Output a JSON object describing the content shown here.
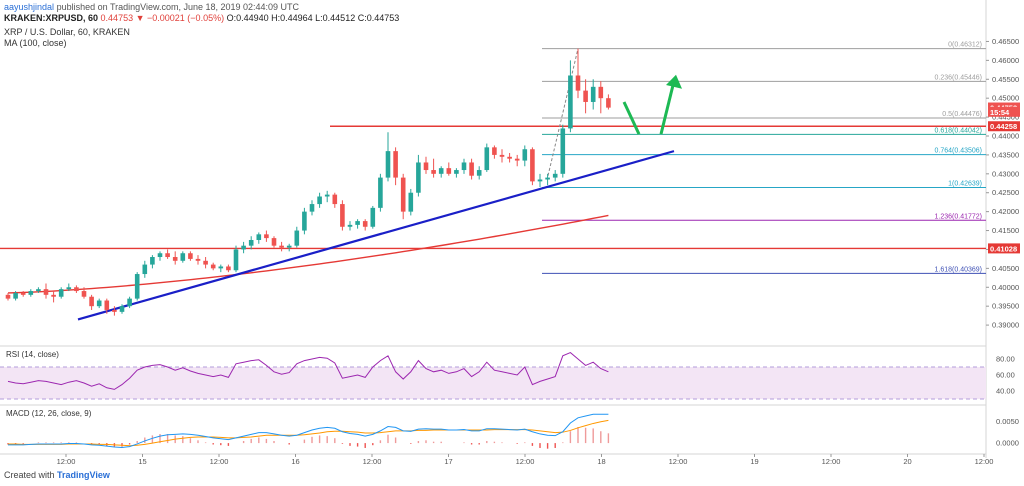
{
  "header": {
    "publisher": "aayushjindal",
    "published_text": "published on TradingView.com, June 18, 2019 02:44:09 UTC",
    "symbol": "KRAKEN:XRPUSD, 60",
    "last": "0.44753",
    "change": "▼ −0.00021 (−0.05%)",
    "ohlc": "O:0.44940 H:0.44964 L:0.44512 C:0.44753",
    "legend_title": "XRP / U.S. Dollar, 60, KRAKEN",
    "legend_ma": "MA (100, close)"
  },
  "footer": {
    "created_with": "Created with",
    "brand": "TradingView"
  },
  "colors": {
    "up": "#26a69a",
    "down": "#ef5350",
    "ma": "#e53935",
    "trend": "#1a1fc7",
    "resistance": "#e53935",
    "arrow": "#1db954",
    "rsi": "#9c27b0",
    "macd": "#2196f3",
    "signal": "#ff9800"
  },
  "chart_data": {
    "type": "candlestick",
    "price_ylim": [
      0.385,
      0.4675
    ],
    "price_ticks": [
      "0.46500",
      "0.46000",
      "0.45500",
      "0.45000",
      "0.44500",
      "0.44000",
      "0.43500",
      "0.43000",
      "0.42500",
      "0.42000",
      "0.41500",
      "0.41000",
      "0.40500",
      "0.40000",
      "0.39500",
      "0.39000"
    ],
    "time_ticks": [
      "12:00",
      "15",
      "12:00",
      "16",
      "12:00",
      "17",
      "12:00",
      "18",
      "12:00",
      "19",
      "12:00",
      "20",
      "12:00"
    ],
    "candles": [
      [
        0.398,
        0.3985,
        0.3965,
        0.397
      ],
      [
        0.397,
        0.399,
        0.3965,
        0.3985
      ],
      [
        0.3985,
        0.399,
        0.3975,
        0.398
      ],
      [
        0.398,
        0.3995,
        0.3975,
        0.399
      ],
      [
        0.399,
        0.4,
        0.3985,
        0.3995
      ],
      [
        0.3995,
        0.401,
        0.397,
        0.398
      ],
      [
        0.398,
        0.399,
        0.396,
        0.3975
      ],
      [
        0.3975,
        0.4,
        0.397,
        0.3995
      ],
      [
        0.3995,
        0.401,
        0.399,
        0.4
      ],
      [
        0.4,
        0.4005,
        0.3985,
        0.399
      ],
      [
        0.399,
        0.4,
        0.397,
        0.3975
      ],
      [
        0.3975,
        0.398,
        0.394,
        0.395
      ],
      [
        0.395,
        0.397,
        0.3945,
        0.3965
      ],
      [
        0.3965,
        0.397,
        0.393,
        0.394
      ],
      [
        0.394,
        0.395,
        0.3925,
        0.3935
      ],
      [
        0.3935,
        0.3955,
        0.393,
        0.395
      ],
      [
        0.395,
        0.3975,
        0.3945,
        0.397
      ],
      [
        0.397,
        0.404,
        0.3965,
        0.4035
      ],
      [
        0.4035,
        0.407,
        0.4025,
        0.406
      ],
      [
        0.406,
        0.4085,
        0.405,
        0.408
      ],
      [
        0.408,
        0.4095,
        0.407,
        0.409
      ],
      [
        0.409,
        0.41,
        0.4075,
        0.408
      ],
      [
        0.408,
        0.4095,
        0.406,
        0.407
      ],
      [
        0.407,
        0.4095,
        0.4065,
        0.409
      ],
      [
        0.409,
        0.4095,
        0.407,
        0.4075
      ],
      [
        0.4075,
        0.4085,
        0.406,
        0.407
      ],
      [
        0.407,
        0.408,
        0.405,
        0.406
      ],
      [
        0.406,
        0.4065,
        0.4045,
        0.405
      ],
      [
        0.405,
        0.406,
        0.404,
        0.4055
      ],
      [
        0.4055,
        0.406,
        0.404,
        0.4045
      ],
      [
        0.4045,
        0.411,
        0.404,
        0.41
      ],
      [
        0.41,
        0.412,
        0.409,
        0.411
      ],
      [
        0.411,
        0.4135,
        0.41,
        0.4125
      ],
      [
        0.4125,
        0.4145,
        0.4115,
        0.414
      ],
      [
        0.414,
        0.415,
        0.412,
        0.413
      ],
      [
        0.413,
        0.4135,
        0.4105,
        0.411
      ],
      [
        0.411,
        0.412,
        0.4095,
        0.4105
      ],
      [
        0.4105,
        0.4115,
        0.4095,
        0.411
      ],
      [
        0.411,
        0.416,
        0.4105,
        0.415
      ],
      [
        0.415,
        0.421,
        0.414,
        0.42
      ],
      [
        0.42,
        0.423,
        0.419,
        0.422
      ],
      [
        0.422,
        0.425,
        0.421,
        0.424
      ],
      [
        0.424,
        0.4255,
        0.4225,
        0.4245
      ],
      [
        0.4245,
        0.425,
        0.421,
        0.422
      ],
      [
        0.422,
        0.423,
        0.415,
        0.416
      ],
      [
        0.416,
        0.4175,
        0.415,
        0.4165
      ],
      [
        0.4165,
        0.418,
        0.4155,
        0.4175
      ],
      [
        0.4175,
        0.418,
        0.415,
        0.416
      ],
      [
        0.416,
        0.4215,
        0.4155,
        0.421
      ],
      [
        0.421,
        0.43,
        0.42,
        0.429
      ],
      [
        0.429,
        0.441,
        0.428,
        0.436
      ],
      [
        0.436,
        0.437,
        0.427,
        0.429
      ],
      [
        0.429,
        0.43,
        0.418,
        0.42
      ],
      [
        0.42,
        0.426,
        0.419,
        0.425
      ],
      [
        0.425,
        0.435,
        0.424,
        0.433
      ],
      [
        0.433,
        0.4345,
        0.43,
        0.431
      ],
      [
        0.431,
        0.434,
        0.429,
        0.43
      ],
      [
        0.43,
        0.432,
        0.429,
        0.4315
      ],
      [
        0.4315,
        0.433,
        0.4295,
        0.43
      ],
      [
        0.43,
        0.4315,
        0.429,
        0.431
      ],
      [
        0.431,
        0.434,
        0.43,
        0.433
      ],
      [
        0.433,
        0.434,
        0.4285,
        0.4295
      ],
      [
        0.4295,
        0.432,
        0.4285,
        0.431
      ],
      [
        0.431,
        0.438,
        0.4305,
        0.437
      ],
      [
        0.437,
        0.4375,
        0.434,
        0.435
      ],
      [
        0.435,
        0.4365,
        0.433,
        0.4345
      ],
      [
        0.4345,
        0.4355,
        0.433,
        0.434
      ],
      [
        0.434,
        0.435,
        0.432,
        0.4335
      ],
      [
        0.4335,
        0.4375,
        0.432,
        0.4365
      ],
      [
        0.4365,
        0.437,
        0.427,
        0.428
      ],
      [
        0.428,
        0.43,
        0.4265,
        0.4285
      ],
      [
        0.4285,
        0.43,
        0.427,
        0.429
      ],
      [
        0.429,
        0.431,
        0.428,
        0.43
      ],
      [
        0.43,
        0.443,
        0.429,
        0.442
      ],
      [
        0.442,
        0.46,
        0.441,
        0.456
      ],
      [
        0.456,
        0.4631,
        0.45,
        0.452
      ],
      [
        0.452,
        0.455,
        0.446,
        0.449
      ],
      [
        0.449,
        0.455,
        0.447,
        0.453
      ],
      [
        0.453,
        0.4545,
        0.446,
        0.45
      ],
      [
        0.45,
        0.451,
        0.447,
        0.4475
      ]
    ],
    "fib_levels": [
      {
        "label": "0(0.46312)",
        "value": 0.46312
      },
      {
        "label": "0.236(0.45446)",
        "value": 0.45446
      },
      {
        "label": "0.5(0.44476)",
        "value": 0.44476
      },
      {
        "label": "0.618(0.44042)",
        "value": 0.44042
      },
      {
        "label": "0.764(0.43506)",
        "value": 0.43506
      },
      {
        "label": "1(0.42639)",
        "value": 0.42639
      },
      {
        "label": "1.236(0.41772)",
        "value": 0.41772
      },
      {
        "label": "1.618(0.40369)",
        "value": 0.40369
      }
    ],
    "resistance_levels": [
      0.44258,
      0.41028
    ],
    "price_tags": [
      {
        "label": "0.44753",
        "value": 0.44753,
        "color": "#ef5350"
      },
      {
        "label": "15:54",
        "value": 0.4464,
        "color": "#ef5350"
      },
      {
        "label": "0.44258",
        "value": 0.44258,
        "color": "#e53935"
      },
      {
        "label": "0.41028",
        "value": 0.41028,
        "color": "#e53935"
      }
    ],
    "rsi_title": "RSI (14, close)",
    "rsi_ticks": [
      "80.00",
      "60.00",
      "40.00"
    ],
    "rsi_values": [
      52,
      50,
      49,
      51,
      53,
      52,
      50,
      48,
      51,
      53,
      50,
      46,
      49,
      44,
      42,
      48,
      56,
      66,
      70,
      72,
      73,
      70,
      66,
      69,
      65,
      62,
      60,
      58,
      60,
      57,
      74,
      76,
      78,
      79,
      72,
      64,
      61,
      63,
      74,
      78,
      80,
      82,
      81,
      75,
      56,
      58,
      60,
      57,
      70,
      78,
      84,
      64,
      55,
      64,
      78,
      68,
      64,
      66,
      62,
      64,
      68,
      58,
      64,
      76,
      66,
      64,
      62,
      60,
      70,
      48,
      52,
      55,
      58,
      84,
      88,
      80,
      72,
      76,
      68,
      64
    ],
    "macd_title": "MACD (12, 26, close, 9)",
    "macd_ticks": [
      "0.0050",
      "0.0000"
    ],
    "macd_values": [
      -0.0004,
      -0.0004,
      -0.0004,
      -0.0003,
      -0.0002,
      -0.0002,
      -0.0002,
      -0.0002,
      -0.0001,
      -0.0001,
      -0.0002,
      -0.0004,
      -0.0005,
      -0.0007,
      -0.0009,
      -0.001,
      -0.0008,
      -0.0002,
      0.0005,
      0.0011,
      0.0016,
      0.0019,
      0.002,
      0.0021,
      0.002,
      0.0018,
      0.0015,
      0.0012,
      0.001,
      0.0008,
      0.0012,
      0.0016,
      0.002,
      0.0024,
      0.0024,
      0.0021,
      0.0018,
      0.0016,
      0.0018,
      0.0024,
      0.003,
      0.0034,
      0.0036,
      0.0034,
      0.0026,
      0.0022,
      0.002,
      0.0016,
      0.002,
      0.0028,
      0.0038,
      0.0036,
      0.0028,
      0.0027,
      0.0032,
      0.0033,
      0.0032,
      0.0032,
      0.003,
      0.003,
      0.0031,
      0.0028,
      0.0028,
      0.0033,
      0.0033,
      0.0032,
      0.0031,
      0.003,
      0.0032,
      0.0026,
      0.0021,
      0.0018,
      0.0017,
      0.0026,
      0.0046,
      0.0058,
      0.0062,
      0.0066,
      0.0066,
      0.0066
    ],
    "signal_values": [
      -0.0002,
      -0.0002,
      -0.0003,
      -0.0003,
      -0.0003,
      -0.0003,
      -0.0003,
      -0.0003,
      -0.0002,
      -0.0002,
      -0.0002,
      -0.0002,
      -0.0003,
      -0.0003,
      -0.0004,
      -0.0005,
      -0.0006,
      -0.0005,
      -0.0003,
      0.0,
      0.0003,
      0.0006,
      0.0009,
      0.0011,
      0.0013,
      0.0014,
      0.0014,
      0.0014,
      0.0013,
      0.0012,
      0.0012,
      0.0013,
      0.0014,
      0.0016,
      0.0018,
      0.0018,
      0.0018,
      0.0018,
      0.0018,
      0.0019,
      0.0021,
      0.0023,
      0.0026,
      0.0027,
      0.0027,
      0.0026,
      0.0025,
      0.0023,
      0.0023,
      0.0024,
      0.0026,
      0.0028,
      0.0028,
      0.0028,
      0.0029,
      0.0029,
      0.003,
      0.003,
      0.003,
      0.003,
      0.003,
      0.003,
      0.003,
      0.003,
      0.0031,
      0.0031,
      0.0031,
      0.0031,
      0.0031,
      0.003,
      0.0028,
      0.0026,
      0.0024,
      0.0025,
      0.0029,
      0.0035,
      0.004,
      0.0045,
      0.0049,
      0.0052
    ]
  }
}
